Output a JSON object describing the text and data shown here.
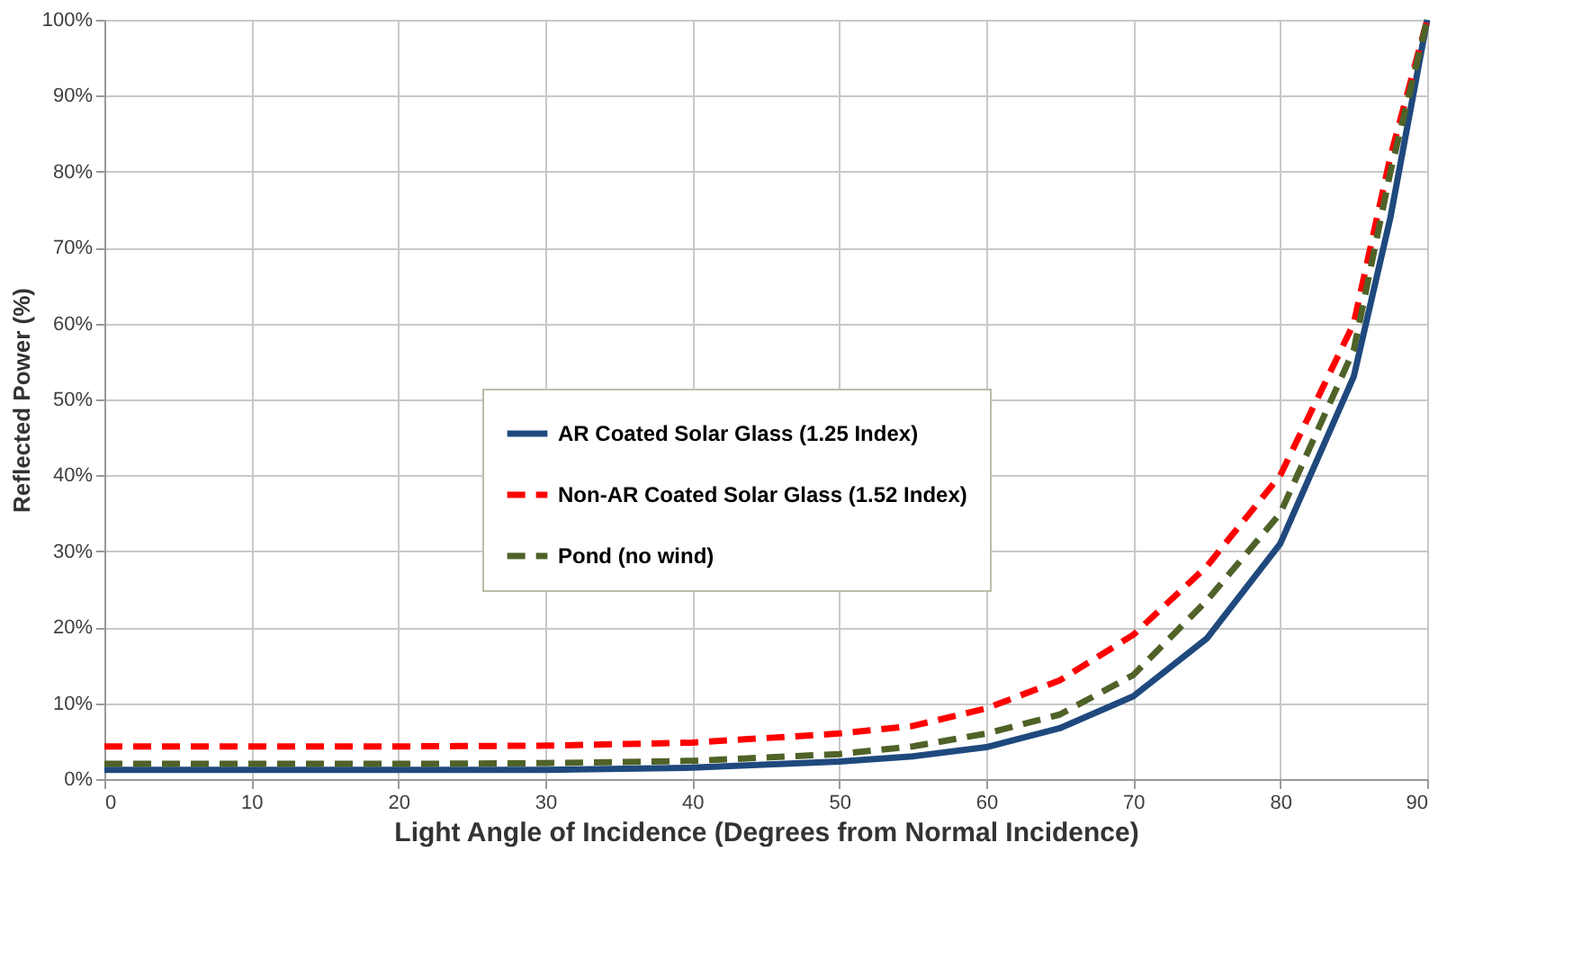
{
  "chart_data": {
    "type": "line",
    "xlabel": "Light Angle of Incidence (Degrees from Normal Incidence)",
    "ylabel": "Reflected Power (%)",
    "x": [
      0,
      10,
      20,
      30,
      40,
      50,
      55,
      60,
      65,
      70,
      75,
      80,
      85,
      87.5,
      90
    ],
    "series": [
      {
        "name": "AR Coated Solar Glass (1.25 Index)",
        "color": "#1f497d",
        "line_style": "solid",
        "values": [
          1.2,
          1.2,
          1.2,
          1.2,
          1.5,
          2.3,
          3,
          4.2,
          6.7,
          10.9,
          18.5,
          31,
          53,
          74,
          100
        ]
      },
      {
        "name": "Non-AR Coated Solar Glass (1.52 Index)",
        "color": "#ff0000",
        "line_style": "dashed",
        "values": [
          4.3,
          4.3,
          4.3,
          4.4,
          4.8,
          6,
          7,
          9.3,
          13,
          19,
          28,
          40,
          60,
          82,
          100
        ]
      },
      {
        "name": "Pond (no wind)",
        "color": "#4f6228",
        "line_style": "dashed",
        "values": [
          2,
          2,
          2,
          2.1,
          2.4,
          3.3,
          4.3,
          6,
          8.5,
          13.7,
          23.5,
          35,
          56.5,
          80,
          100
        ]
      }
    ],
    "xlim": [
      0,
      90
    ],
    "xticks": [
      0,
      10,
      20,
      30,
      40,
      50,
      60,
      70,
      80,
      90
    ],
    "ylim": [
      0,
      100
    ],
    "yticks": [
      {
        "value": 0,
        "label": "0%"
      },
      {
        "value": 10,
        "label": "10%"
      },
      {
        "value": 20,
        "label": "20%"
      },
      {
        "value": 30,
        "label": "30%"
      },
      {
        "value": 40,
        "label": "40%"
      },
      {
        "value": 50,
        "label": "50%"
      },
      {
        "value": 60,
        "label": "60%"
      },
      {
        "value": 70,
        "label": "70%"
      },
      {
        "value": 80,
        "label": "80%"
      },
      {
        "value": 90,
        "label": "90%"
      },
      {
        "value": 100,
        "label": "100%"
      }
    ],
    "grid": true,
    "legend": "left",
    "marker": "none"
  }
}
